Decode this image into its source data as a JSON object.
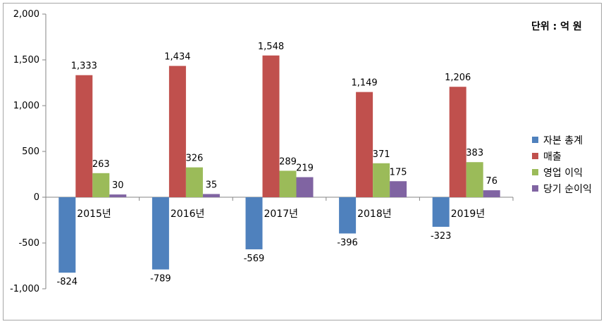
{
  "chart_data": {
    "type": "bar",
    "unit_label": "단위 : 억 원",
    "categories": [
      "2015년",
      "2016년",
      "2017년",
      "2018년",
      "2019년"
    ],
    "ylim": [
      -1000,
      2000
    ],
    "yticks": [
      2000,
      1500,
      1000,
      500,
      0,
      -500,
      -1000
    ],
    "ytick_labels": [
      "2,000",
      "1,500",
      "1,000",
      "500",
      "0",
      "-500",
      "-1,000"
    ],
    "grid": false,
    "legend_position": "right",
    "series": [
      {
        "name": "자본 총계",
        "color": "#4f81bd",
        "values": [
          -824,
          -789,
          -569,
          -396,
          -323
        ],
        "labels": [
          "-824",
          "-789",
          "-569",
          "-396",
          "-323"
        ]
      },
      {
        "name": "매출",
        "color": "#c0504d",
        "values": [
          1333,
          1434,
          1548,
          1149,
          1206
        ],
        "labels": [
          "1,333",
          "1,434",
          "1,548",
          "1,149",
          "1,206"
        ]
      },
      {
        "name": "영업 이익",
        "color": "#9bbb59",
        "values": [
          263,
          326,
          289,
          371,
          383
        ],
        "labels": [
          "263",
          "326",
          "289",
          "371",
          "383"
        ]
      },
      {
        "name": "당기 순이익",
        "color": "#8064a2",
        "values": [
          30,
          35,
          219,
          175,
          76
        ],
        "labels": [
          "30",
          "35",
          "219",
          "175",
          "76"
        ]
      }
    ]
  }
}
